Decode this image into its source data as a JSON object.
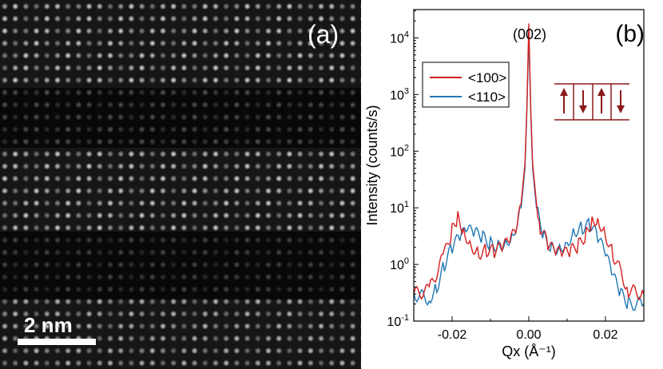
{
  "panel_a": {
    "label": "(a)",
    "scale_bar_label": "2 nm"
  },
  "chart_data": {
    "type": "line",
    "panel_label": "(b)",
    "peak_label": "(002)",
    "xlabel": "Qx (Å⁻¹)",
    "ylabel": "Intensity (counts/s)",
    "xlim": [
      -0.03,
      0.03
    ],
    "ylim_log10": [
      -1,
      4.5
    ],
    "y_scale": "log",
    "x_ticks": [
      -0.02,
      0.0,
      0.02
    ],
    "x_tick_labels": [
      "-0.02",
      "0.00",
      "0.02"
    ],
    "y_ticks_log10": [
      -1,
      0,
      1,
      2,
      3,
      4
    ],
    "y_tick_labels": [
      "10-1",
      "100",
      "101",
      "102",
      "103",
      "104"
    ],
    "legend_position": "top-left",
    "series": [
      {
        "name": "<100>",
        "color": "#d41f1f",
        "x": [
          -0.03,
          -0.026,
          -0.022,
          -0.02,
          -0.0185,
          -0.017,
          -0.015,
          -0.013,
          -0.011,
          -0.009,
          -0.007,
          -0.005,
          -0.003,
          -0.002,
          -0.001,
          -0.0005,
          0.0,
          0.0005,
          0.001,
          0.002,
          0.003,
          0.005,
          0.007,
          0.009,
          0.011,
          0.013,
          0.015,
          0.0165,
          0.018,
          0.02,
          0.022,
          0.026,
          0.03
        ],
        "y": [
          0.3,
          0.35,
          1.5,
          4.0,
          7.0,
          4.0,
          2.2,
          1.6,
          1.8,
          1.7,
          2.0,
          2.5,
          4.5,
          12,
          60,
          600,
          18000,
          600,
          60,
          12,
          4.5,
          2.2,
          1.6,
          1.5,
          1.7,
          2.2,
          3.5,
          6.0,
          6.5,
          3.5,
          1.5,
          0.35,
          0.3
        ]
      },
      {
        "name": "<110>",
        "color": "#1f77b4",
        "x": [
          -0.03,
          -0.026,
          -0.024,
          -0.022,
          -0.02,
          -0.018,
          -0.016,
          -0.014,
          -0.012,
          -0.01,
          -0.008,
          -0.006,
          -0.004,
          -0.002,
          -0.001,
          -0.0005,
          0.0,
          0.0005,
          0.001,
          0.002,
          0.004,
          0.006,
          0.008,
          0.01,
          0.012,
          0.014,
          0.016,
          0.018,
          0.02,
          0.022,
          0.024,
          0.026,
          0.03
        ],
        "y": [
          0.3,
          0.25,
          0.4,
          1.0,
          2.0,
          3.0,
          4.0,
          3.5,
          3.0,
          2.3,
          2.2,
          2.5,
          3.5,
          10,
          50,
          500,
          12000,
          500,
          50,
          10,
          3.0,
          2.0,
          2.0,
          2.5,
          4.0,
          4.5,
          5.0,
          3.0,
          1.5,
          0.6,
          0.3,
          0.2,
          0.2
        ]
      }
    ]
  }
}
